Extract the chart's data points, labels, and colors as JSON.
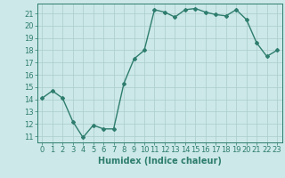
{
  "x": [
    0,
    1,
    2,
    3,
    4,
    5,
    6,
    7,
    8,
    9,
    10,
    11,
    12,
    13,
    14,
    15,
    16,
    17,
    18,
    19,
    20,
    21,
    22,
    23
  ],
  "y": [
    14.1,
    14.7,
    14.1,
    12.2,
    10.9,
    11.9,
    11.6,
    11.6,
    15.3,
    17.3,
    18.0,
    21.3,
    21.1,
    20.7,
    21.3,
    21.4,
    21.1,
    20.9,
    20.8,
    21.3,
    20.5,
    18.6,
    17.5,
    18.0
  ],
  "line_color": "#2e7d6e",
  "marker": "D",
  "marker_size": 2,
  "bg_color": "#cce8e8",
  "grid_color": "#aacccc",
  "xlabel": "Humidex (Indice chaleur)",
  "ylabel_ticks": [
    11,
    12,
    13,
    14,
    15,
    16,
    17,
    18,
    19,
    20,
    21
  ],
  "ylim": [
    10.5,
    21.8
  ],
  "xlim": [
    -0.5,
    23.5
  ],
  "xlabel_fontsize": 7,
  "tick_fontsize": 6,
  "line_width": 1.0
}
